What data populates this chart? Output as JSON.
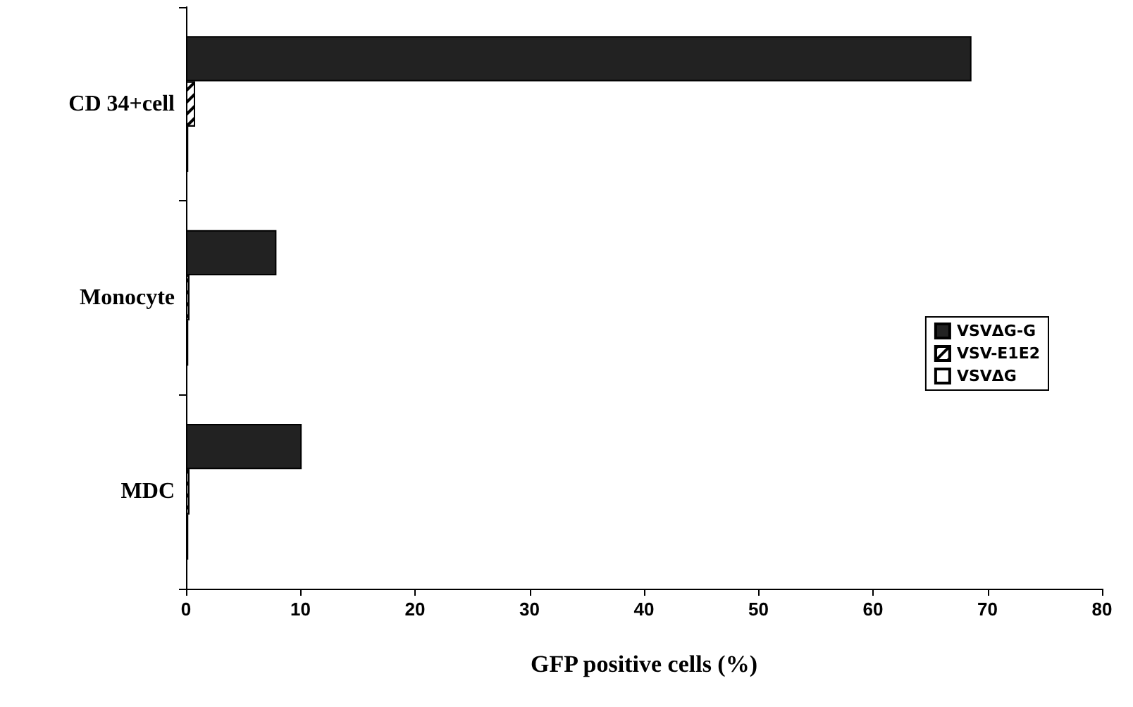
{
  "chart_data": {
    "type": "bar",
    "orientation": "horizontal",
    "xlabel": "GFP positive cells (%)",
    "categories": [
      "CD 34+cell",
      "Monocyte",
      "MDC"
    ],
    "series": [
      {
        "name": "VSVΔG-G",
        "color": "#222222",
        "values": [
          68.6,
          7.9,
          10.1
        ]
      },
      {
        "name": "VSV-E1E2",
        "color": "#ffffff",
        "values": [
          0.8,
          0.3,
          0.3
        ]
      },
      {
        "name": "VSVΔG",
        "color": "#ffffff",
        "values": [
          0.2,
          0.2,
          0.2
        ]
      }
    ],
    "xlim": [
      0,
      80
    ],
    "xticks": [
      0,
      10,
      20,
      30,
      40,
      50,
      60,
      70,
      80
    ],
    "grid": false,
    "legend": "right"
  }
}
